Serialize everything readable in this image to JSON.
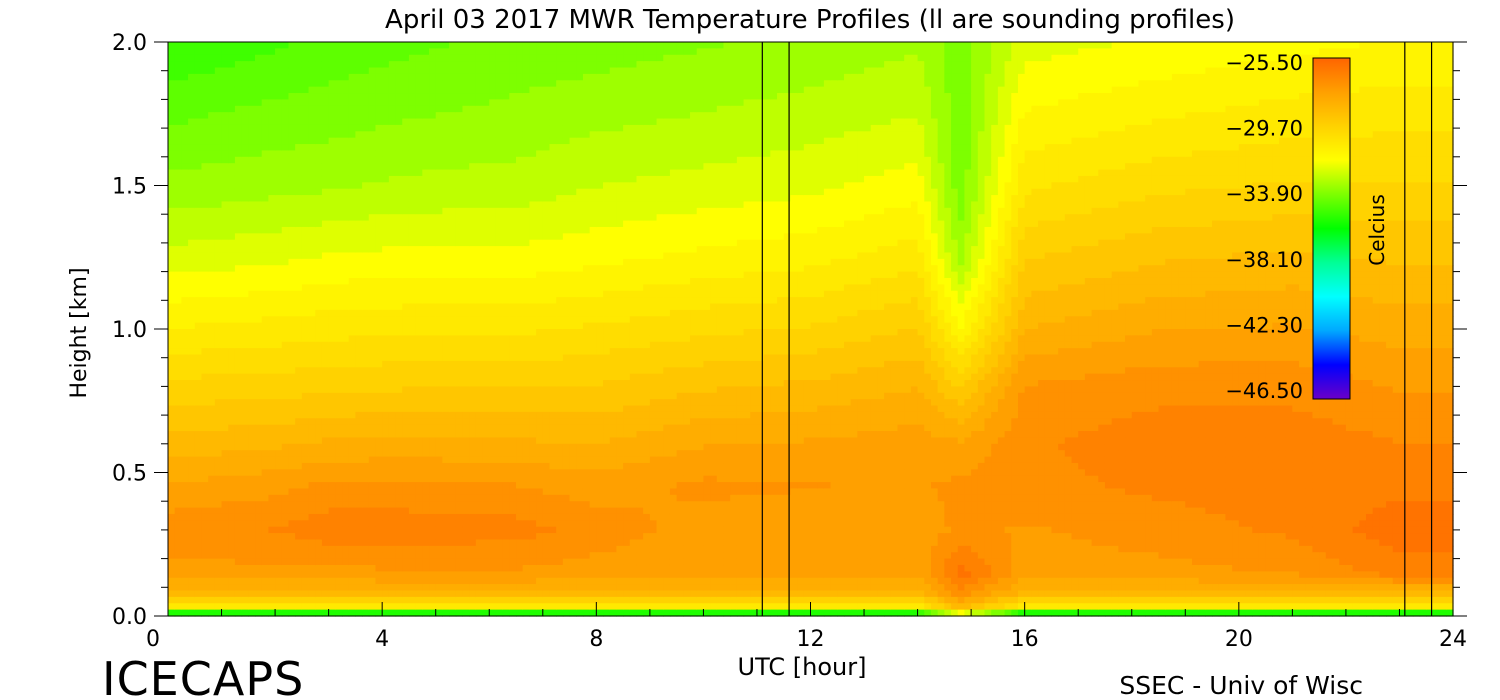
{
  "chart_data": {
    "type": "heatmap",
    "title": "April 03 2017 MWR Temperature Profiles (ll are sounding profiles)",
    "xlabel": "UTC [hour]",
    "ylabel": "Height [km]",
    "xlim": [
      0,
      24
    ],
    "ylim": [
      0,
      2.0
    ],
    "x_ticks": [
      "0",
      "4",
      "8",
      "12",
      "16",
      "20",
      "24"
    ],
    "x_tick_values": [
      0,
      4,
      8,
      12,
      16,
      20,
      24
    ],
    "y_ticks": [
      "0.0",
      "0.5",
      "1.0",
      "1.5",
      "2.0"
    ],
    "y_tick_values": [
      0.0,
      0.5,
      1.0,
      1.5,
      2.0
    ],
    "colorbar": {
      "label": "Celcius",
      "ticks": [
        "−25.50",
        "−29.70",
        "−33.90",
        "−38.10",
        "−42.30",
        "−46.50"
      ],
      "min": -46.5,
      "max": -25.5,
      "colors": [
        "#6a00c8",
        "#0000ff",
        "#00a8ff",
        "#00ffff",
        "#00ff96",
        "#00ff00",
        "#7dff00",
        "#ffff00",
        "#ffd200",
        "#ffa000",
        "#ff6400"
      ]
    },
    "sounding_times": [
      11.1,
      11.6,
      23.1,
      23.6
    ],
    "heights_km": [
      0.0,
      0.03,
      0.08,
      0.15,
      0.3,
      0.45,
      0.6,
      0.8,
      1.0,
      1.25,
      1.5,
      1.75,
      2.0
    ],
    "profiles": [
      {
        "time": 0.0,
        "temps": [
          -38,
          -31,
          -28.5,
          -27.5,
          -27.0,
          -27.8,
          -28.7,
          -29.8,
          -31.0,
          -32.4,
          -33.5,
          -34.3,
          -35.2
        ]
      },
      {
        "time": 2.0,
        "temps": [
          -38,
          -31,
          -28.5,
          -27.5,
          -26.8,
          -27.5,
          -28.5,
          -29.7,
          -30.8,
          -32.2,
          -33.3,
          -34.0,
          -34.8
        ]
      },
      {
        "time": 3.0,
        "temps": [
          -38,
          -31,
          -28.5,
          -27.5,
          -26.5,
          -27.2,
          -28.3,
          -29.6,
          -30.7,
          -32.0,
          -33.2,
          -33.9,
          -34.5
        ]
      },
      {
        "time": 4.5,
        "temps": [
          -38,
          -31,
          -28.5,
          -27.4,
          -26.5,
          -27.2,
          -28.2,
          -29.5,
          -30.6,
          -31.9,
          -33.0,
          -33.7,
          -34.3
        ]
      },
      {
        "time": 6.5,
        "temps": [
          -38,
          -31,
          -28.5,
          -27.4,
          -26.6,
          -27.3,
          -28.3,
          -29.5,
          -30.6,
          -31.9,
          -32.9,
          -33.5,
          -34.0
        ]
      },
      {
        "time": 8.0,
        "temps": [
          -38,
          -31,
          -28.5,
          -27.6,
          -27.0,
          -27.6,
          -28.4,
          -29.4,
          -30.4,
          -31.7,
          -32.6,
          -33.3,
          -33.9
        ]
      },
      {
        "time": 10.0,
        "temps": [
          -38,
          -31,
          -28.5,
          -27.8,
          -27.6,
          -27.2,
          -27.9,
          -29.0,
          -30.1,
          -31.4,
          -32.4,
          -33.1,
          -33.7
        ]
      },
      {
        "time": 12.0,
        "temps": [
          -38,
          -31,
          -28.5,
          -27.8,
          -27.8,
          -27.3,
          -27.8,
          -28.8,
          -29.9,
          -31.2,
          -32.2,
          -32.9,
          -33.5
        ]
      },
      {
        "time": 14.0,
        "temps": [
          -38,
          -31,
          -28.5,
          -27.8,
          -27.7,
          -27.4,
          -27.6,
          -28.4,
          -29.4,
          -30.7,
          -31.8,
          -32.6,
          -33.2
        ]
      },
      {
        "time": 14.8,
        "temps": [
          -34,
          -28.5,
          -27.0,
          -26.0,
          -27.2,
          -27.2,
          -27.8,
          -29.5,
          -31.5,
          -33.3,
          -34.0,
          -34.0,
          -34.0
        ]
      },
      {
        "time": 16.0,
        "temps": [
          -38,
          -31,
          -28.5,
          -27.6,
          -27.4,
          -27.0,
          -26.9,
          -27.3,
          -28.4,
          -29.5,
          -30.6,
          -31.5,
          -32.3
        ]
      },
      {
        "time": 18.5,
        "temps": [
          -38,
          -31,
          -28.5,
          -27.5,
          -27.1,
          -26.7,
          -26.5,
          -27.0,
          -27.9,
          -29.0,
          -30.1,
          -31.1,
          -32.0
        ]
      },
      {
        "time": 21.0,
        "temps": [
          -38,
          -31,
          -28.5,
          -27.3,
          -26.7,
          -26.5,
          -26.5,
          -27.0,
          -27.8,
          -28.8,
          -29.9,
          -30.8,
          -31.7
        ]
      },
      {
        "time": 23.0,
        "temps": [
          -38,
          -31,
          -28.5,
          -26.5,
          -26.0,
          -26.4,
          -26.8,
          -27.4,
          -28.1,
          -29.0,
          -29.9,
          -30.7,
          -31.5
        ]
      },
      {
        "time": 24.0,
        "temps": [
          -38,
          -31,
          -28.5,
          -26.5,
          -26.0,
          -26.4,
          -26.8,
          -27.4,
          -28.1,
          -29.0,
          -29.9,
          -30.7,
          -31.5
        ]
      }
    ]
  },
  "footer": {
    "left_logo": "ICECAPS",
    "right_credit": "SSEC - Univ of Wisc"
  }
}
